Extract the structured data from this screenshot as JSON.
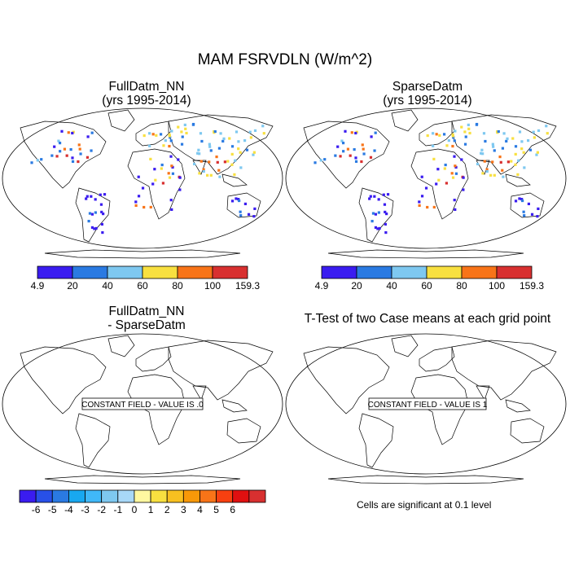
{
  "title": "MAM FSRVDLN (W/m^2)",
  "panels": [
    {
      "id": "p1",
      "title_line1": "FullDatm_NN",
      "title_line2": "(yrs 1995-2014)"
    },
    {
      "id": "p2",
      "title_line1": "SparseDatm",
      "title_line2": "(yrs 1995-2014)"
    },
    {
      "id": "p3",
      "title_line1": "FullDatm_NN",
      "title_line2": "- SparseDatm",
      "box_text": "CONSTANT FIELD - VALUE IS .0"
    },
    {
      "id": "p4",
      "title_line1": "T-Test of two Case means at each grid point",
      "title_line2": "",
      "box_text": "CONSTANT FIELD - VALUE IS 1"
    }
  ],
  "colorbar_abs": {
    "labels": [
      "4.9",
      "20",
      "40",
      "60",
      "80",
      "100",
      "159.3"
    ],
    "colors": [
      "#3a1cf0",
      "#2a7ae2",
      "#7ec8f0",
      "#f8e040",
      "#f87418",
      "#d83030"
    ]
  },
  "colorbar_diff": {
    "labels": [
      "-6",
      "-5",
      "-4",
      "-3",
      "-2",
      "-1",
      "0",
      "1",
      "2",
      "3",
      "4",
      "5",
      "6"
    ],
    "colors": [
      "#3a1cf0",
      "#2850e8",
      "#2a7ae2",
      "#18a8f0",
      "#40b8f8",
      "#7ec8f0",
      "#a8d8f8",
      "#fff8a0",
      "#f8e040",
      "#f8c020",
      "#f89808",
      "#f87418",
      "#f84010",
      "#e01010",
      "#d83030"
    ]
  },
  "significance_note": "Cells are significant at 0.1 level"
}
